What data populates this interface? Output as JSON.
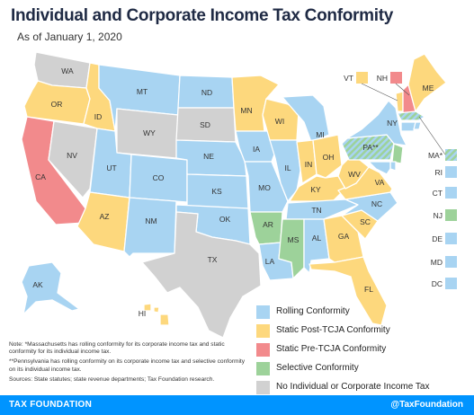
{
  "title": "Individual and Corporate Income Tax Conformity",
  "subtitle": "As of January 1, 2020",
  "colors": {
    "rolling": "#a8d4f2",
    "post": "#fdd87d",
    "pre": "#f28a8c",
    "selective": "#9dd29a",
    "none": "#d1d1d1",
    "border": "#ffffff"
  },
  "states": {
    "WA": "WA",
    "OR": "OR",
    "CA": "CA",
    "ID": "ID",
    "NV": "NV",
    "MT": "MT",
    "WY": "WY",
    "UT": "UT",
    "AZ": "AZ",
    "CO": "CO",
    "NM": "NM",
    "ND": "ND",
    "SD": "SD",
    "NE": "NE",
    "KS": "KS",
    "OK": "OK",
    "TX": "TX",
    "MN": "MN",
    "IA": "IA",
    "MO": "MO",
    "AR": "AR",
    "LA": "LA",
    "WI": "WI",
    "IL": "IL",
    "MI": "MI",
    "IN": "IN",
    "OH": "OH",
    "KY": "KY",
    "TN": "TN",
    "MS": "MS",
    "AL": "AL",
    "GA": "GA",
    "FL": "FL",
    "SC": "SC",
    "NC": "NC",
    "VA": "VA",
    "WV": "WV",
    "PA": "PA**",
    "NY": "NY",
    "ME": "ME",
    "AK": "AK",
    "HI": "HI"
  },
  "callouts": {
    "VT": "VT",
    "NH": "NH",
    "MA": "MA*",
    "RI": "RI",
    "CT": "CT",
    "NJ": "NJ",
    "DE": "DE",
    "MD": "MD",
    "DC": "DC"
  },
  "legend": [
    {
      "key": "rolling",
      "label": "Rolling Conformity"
    },
    {
      "key": "post",
      "label": "Static Post-TCJA Conformity"
    },
    {
      "key": "pre",
      "label": "Static Pre-TCJA Conformity"
    },
    {
      "key": "selective",
      "label": "Selective Conformity"
    },
    {
      "key": "none",
      "label": "No Individual or Corporate Income Tax"
    }
  ],
  "notes": {
    "n1": "Note: *Massachusetts has rolling conformity for its corporate income tax and static conformity for its individual income tax.",
    "n2": "**Pennsylvania has rolling conformity on its corporate income tax and selective conformity on its individual income tax.",
    "sources": "Sources: State statutes; state revenue departments; Tax Foundation research."
  },
  "footer": {
    "left": "TAX FOUNDATION",
    "right": "@TaxFoundation"
  }
}
